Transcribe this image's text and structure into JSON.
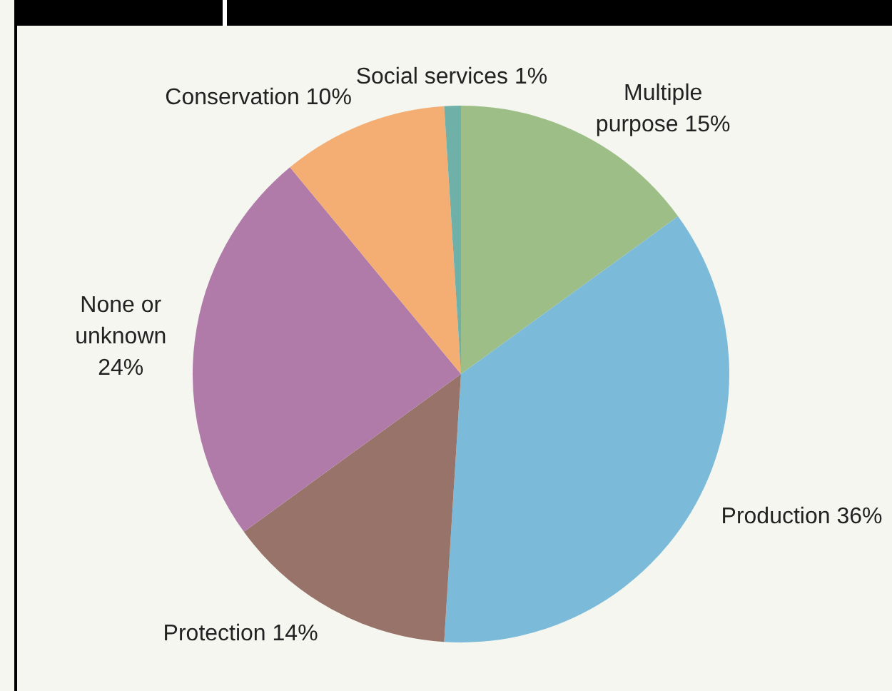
{
  "chart_data": {
    "type": "pie",
    "categories": [
      "Multiple\npurpose",
      "Production",
      "Protection",
      "None or\nunknown",
      "Conservation",
      "Social services"
    ],
    "values": [
      15,
      36,
      14,
      24,
      10,
      1
    ],
    "value_labels": [
      "15%",
      "36%",
      "14%",
      "24%",
      "10%",
      "1%"
    ],
    "colors": [
      "#9dbf87",
      "#7bbad9",
      "#98736a",
      "#b07ba8",
      "#f4ad72",
      "#6fb0a8"
    ],
    "legend": false
  }
}
